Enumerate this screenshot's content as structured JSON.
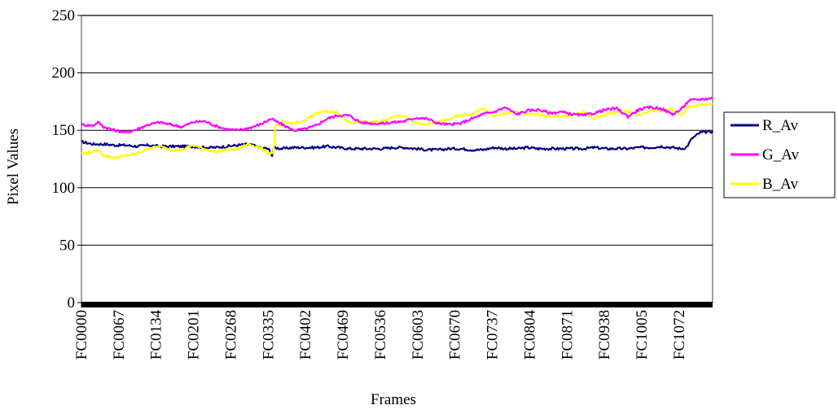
{
  "chart_data": {
    "type": "line",
    "title": "",
    "xlabel": "Frames",
    "ylabel": "Pixel Values",
    "ylim": [
      0,
      250
    ],
    "yticks": [
      0,
      50,
      100,
      150,
      200,
      250
    ],
    "grid": "horizontal",
    "legend": "right",
    "x_tick_labels": [
      "FC0000",
      "FC0067",
      "FC0134",
      "FC0201",
      "FC0268",
      "FC0335",
      "FC0402",
      "FC0469",
      "FC0536",
      "FC0603",
      "FC0670",
      "FC0737",
      "FC0804",
      "FC0871",
      "FC0938",
      "FC1005",
      "FC1072"
    ],
    "frame_count": 1133,
    "series": [
      {
        "name": "R_Av",
        "color": "#000080",
        "frames": [
          0,
          20,
          40,
          60,
          80,
          100,
          120,
          140,
          160,
          180,
          200,
          220,
          240,
          260,
          280,
          300,
          320,
          335,
          340,
          342,
          345,
          360,
          380,
          400,
          420,
          440,
          460,
          480,
          500,
          520,
          540,
          560,
          580,
          600,
          620,
          640,
          660,
          680,
          700,
          720,
          740,
          760,
          780,
          800,
          820,
          840,
          860,
          880,
          900,
          920,
          940,
          960,
          980,
          1000,
          1020,
          1040,
          1060,
          1075,
          1085,
          1095,
          1110,
          1132
        ],
        "values": [
          140,
          138,
          138,
          137,
          137,
          136,
          137,
          136,
          136,
          136,
          136,
          135,
          135,
          136,
          137,
          138,
          135,
          134,
          130,
          128,
          135,
          134,
          135,
          135,
          135,
          136,
          135,
          134,
          134,
          134,
          134,
          135,
          135,
          134,
          133,
          133,
          134,
          134,
          133,
          133,
          135,
          134,
          134,
          135,
          134,
          134,
          134,
          134,
          134,
          135,
          134,
          134,
          134,
          135,
          135,
          136,
          135,
          134,
          135,
          143,
          148,
          149
        ]
      },
      {
        "name": "G_Av",
        "color": "#ff00ff",
        "frames": [
          0,
          20,
          30,
          40,
          60,
          80,
          100,
          120,
          140,
          160,
          180,
          200,
          220,
          240,
          260,
          280,
          300,
          320,
          340,
          360,
          380,
          400,
          420,
          440,
          460,
          480,
          500,
          520,
          540,
          560,
          580,
          600,
          620,
          640,
          660,
          680,
          700,
          720,
          740,
          760,
          780,
          800,
          820,
          840,
          860,
          880,
          900,
          920,
          940,
          960,
          980,
          1000,
          1020,
          1040,
          1060,
          1075,
          1090,
          1110,
          1132
        ],
        "values": [
          155,
          154,
          157,
          153,
          150,
          148,
          151,
          155,
          157,
          155,
          153,
          157,
          158,
          154,
          151,
          150,
          152,
          155,
          160,
          155,
          150,
          151,
          154,
          160,
          163,
          163,
          157,
          156,
          156,
          157,
          158,
          161,
          160,
          156,
          155,
          156,
          160,
          164,
          166,
          170,
          164,
          167,
          168,
          165,
          166,
          164,
          163,
          165,
          168,
          169,
          162,
          168,
          170,
          169,
          164,
          168,
          176,
          177,
          178
        ]
      },
      {
        "name": "B_Av",
        "color": "#ffff00",
        "frames": [
          0,
          20,
          30,
          40,
          60,
          80,
          100,
          120,
          140,
          160,
          180,
          200,
          220,
          240,
          260,
          280,
          300,
          320,
          335,
          345,
          348,
          355,
          360,
          380,
          400,
          420,
          440,
          460,
          480,
          500,
          520,
          540,
          560,
          580,
          600,
          620,
          640,
          660,
          680,
          700,
          720,
          740,
          760,
          780,
          800,
          820,
          840,
          860,
          880,
          900,
          920,
          940,
          960,
          980,
          1000,
          1020,
          1040,
          1060,
          1075,
          1090,
          1110,
          1132
        ],
        "values": [
          130,
          131,
          133,
          128,
          126,
          128,
          130,
          134,
          136,
          133,
          133,
          137,
          134,
          131,
          133,
          134,
          138,
          135,
          130,
          131,
          155,
          153,
          157,
          156,
          158,
          165,
          167,
          165,
          157,
          157,
          157,
          158,
          162,
          163,
          156,
          155,
          157,
          160,
          163,
          164,
          169,
          162,
          165,
          166,
          164,
          164,
          162,
          162,
          163,
          166,
          160,
          164,
          166,
          167,
          163,
          167,
          167,
          168,
          163,
          171,
          172,
          173
        ]
      }
    ]
  }
}
